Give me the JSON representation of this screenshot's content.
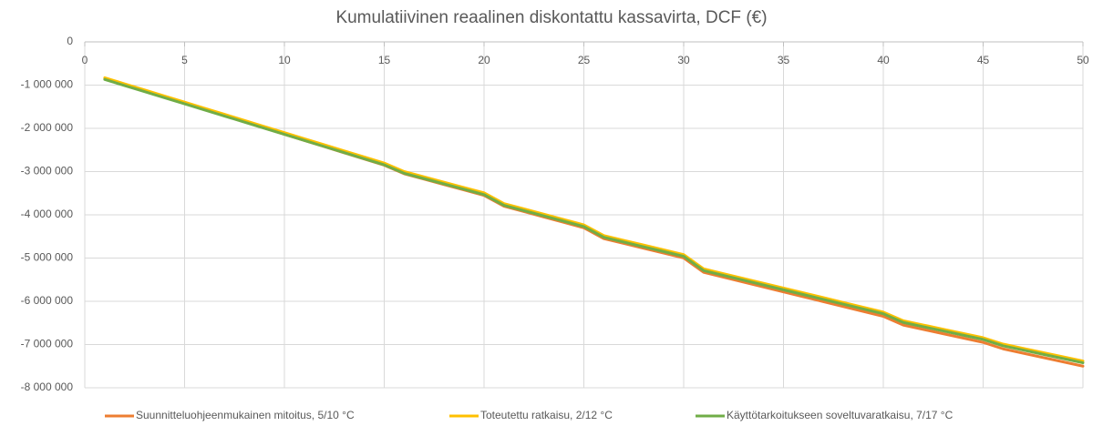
{
  "chart_data": {
    "type": "line",
    "title": "Kumulatiivinen reaalinen diskontattu kassavirta, DCF (€)",
    "x": [
      1,
      2,
      3,
      4,
      5,
      6,
      7,
      8,
      9,
      10,
      11,
      12,
      13,
      14,
      15,
      16,
      17,
      18,
      19,
      20,
      21,
      22,
      23,
      24,
      25,
      26,
      27,
      28,
      29,
      30,
      31,
      32,
      33,
      34,
      35,
      36,
      37,
      38,
      39,
      40,
      41,
      42,
      43,
      44,
      45,
      46,
      47,
      48,
      49,
      50
    ],
    "series": [
      {
        "name": "Suunnitteluohjeenmukainen mitoitus, 5/10  °C",
        "color": "#ED7D31",
        "values": [
          -850000,
          -993000,
          -1136000,
          -1279000,
          -1422000,
          -1565000,
          -1708000,
          -1851000,
          -1994000,
          -2137000,
          -2280000,
          -2423000,
          -2566000,
          -2709000,
          -2852000,
          -3050000,
          -3175000,
          -3300000,
          -3425000,
          -3550000,
          -3800000,
          -3925000,
          -4050000,
          -4175000,
          -4300000,
          -4550000,
          -4662000,
          -4774000,
          -4886000,
          -4998000,
          -5330000,
          -5443000,
          -5556000,
          -5669000,
          -5782000,
          -5895000,
          -6008000,
          -6121000,
          -6234000,
          -6347000,
          -6550000,
          -6650000,
          -6750000,
          -6850000,
          -6950000,
          -7100000,
          -7200000,
          -7300000,
          -7400000,
          -7500000
        ]
      },
      {
        "name": "Toteutettu ratkaisu, 2/12  °C",
        "color": "#FFC000",
        "values": [
          -830000,
          -971000,
          -1112000,
          -1253000,
          -1394000,
          -1535000,
          -1676000,
          -1817000,
          -1958000,
          -2099000,
          -2240000,
          -2381000,
          -2522000,
          -2663000,
          -2804000,
          -3000000,
          -3123000,
          -3246000,
          -3369000,
          -3492000,
          -3740000,
          -3863000,
          -3986000,
          -4109000,
          -4232000,
          -4480000,
          -4590000,
          -4700000,
          -4810000,
          -4920000,
          -5250000,
          -5361000,
          -5472000,
          -5583000,
          -5694000,
          -5805000,
          -5916000,
          -6027000,
          -6138000,
          -6249000,
          -6450000,
          -6548000,
          -6646000,
          -6744000,
          -6842000,
          -6990000,
          -7088000,
          -7186000,
          -7284000,
          -7382000
        ]
      },
      {
        "name": "Käyttötarkoitukseen soveltuvaratkaisu, 7/17  °C",
        "color": "#70AD47",
        "values": [
          -870000,
          -1011000,
          -1152000,
          -1293000,
          -1434000,
          -1575000,
          -1716000,
          -1857000,
          -1998000,
          -2139000,
          -2280000,
          -2421000,
          -2562000,
          -2703000,
          -2844000,
          -3040000,
          -3163000,
          -3286000,
          -3409000,
          -3532000,
          -3780000,
          -3903000,
          -4026000,
          -4149000,
          -4272000,
          -4520000,
          -4630000,
          -4740000,
          -4850000,
          -4960000,
          -5290000,
          -5401000,
          -5512000,
          -5623000,
          -5734000,
          -5845000,
          -5956000,
          -6067000,
          -6178000,
          -6289000,
          -6490000,
          -6588000,
          -6686000,
          -6784000,
          -6882000,
          -7030000,
          -7128000,
          -7226000,
          -7324000,
          -7422000
        ]
      }
    ],
    "xlim": [
      0,
      50
    ],
    "xticks": [
      0,
      5,
      10,
      15,
      20,
      25,
      30,
      35,
      40,
      45,
      50
    ],
    "ylim": [
      -8000000,
      0
    ],
    "yticks": [
      {
        "value": 0,
        "label": "0"
      },
      {
        "value": -1000000,
        "label": "-1 000 000"
      },
      {
        "value": -2000000,
        "label": "-2 000 000"
      },
      {
        "value": -3000000,
        "label": "-3 000 000"
      },
      {
        "value": -4000000,
        "label": "-4 000 000"
      },
      {
        "value": -5000000,
        "label": "-5 000 000"
      },
      {
        "value": -6000000,
        "label": "-6 000 000"
      },
      {
        "value": -7000000,
        "label": "-7 000 000"
      },
      {
        "value": -8000000,
        "label": "-8 000 000"
      }
    ],
    "grid": true,
    "legend": "bottom"
  }
}
